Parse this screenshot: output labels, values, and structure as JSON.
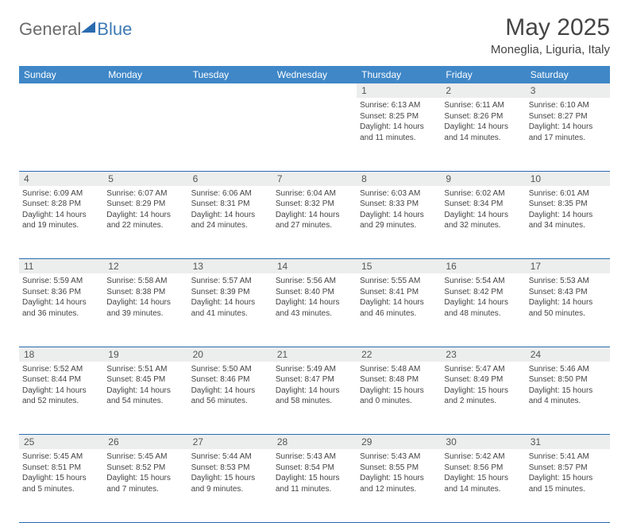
{
  "brand": {
    "part1": "General",
    "part2": "Blue"
  },
  "title": "May 2025",
  "location": "Moneglia, Liguria, Italy",
  "colors": {
    "headerBg": "#3f87c7",
    "headerText": "#ffffff",
    "dayBg": "#eceded",
    "border": "#2a6bb0",
    "bodyText": "#444444"
  },
  "dow": [
    "Sunday",
    "Monday",
    "Tuesday",
    "Wednesday",
    "Thursday",
    "Friday",
    "Saturday"
  ],
  "weeks": [
    [
      null,
      null,
      null,
      null,
      {
        "n": "1",
        "sr": "Sunrise: 6:13 AM",
        "ss": "Sunset: 8:25 PM",
        "d1": "Daylight: 14 hours",
        "d2": "and 11 minutes."
      },
      {
        "n": "2",
        "sr": "Sunrise: 6:11 AM",
        "ss": "Sunset: 8:26 PM",
        "d1": "Daylight: 14 hours",
        "d2": "and 14 minutes."
      },
      {
        "n": "3",
        "sr": "Sunrise: 6:10 AM",
        "ss": "Sunset: 8:27 PM",
        "d1": "Daylight: 14 hours",
        "d2": "and 17 minutes."
      }
    ],
    [
      {
        "n": "4",
        "sr": "Sunrise: 6:09 AM",
        "ss": "Sunset: 8:28 PM",
        "d1": "Daylight: 14 hours",
        "d2": "and 19 minutes."
      },
      {
        "n": "5",
        "sr": "Sunrise: 6:07 AM",
        "ss": "Sunset: 8:29 PM",
        "d1": "Daylight: 14 hours",
        "d2": "and 22 minutes."
      },
      {
        "n": "6",
        "sr": "Sunrise: 6:06 AM",
        "ss": "Sunset: 8:31 PM",
        "d1": "Daylight: 14 hours",
        "d2": "and 24 minutes."
      },
      {
        "n": "7",
        "sr": "Sunrise: 6:04 AM",
        "ss": "Sunset: 8:32 PM",
        "d1": "Daylight: 14 hours",
        "d2": "and 27 minutes."
      },
      {
        "n": "8",
        "sr": "Sunrise: 6:03 AM",
        "ss": "Sunset: 8:33 PM",
        "d1": "Daylight: 14 hours",
        "d2": "and 29 minutes."
      },
      {
        "n": "9",
        "sr": "Sunrise: 6:02 AM",
        "ss": "Sunset: 8:34 PM",
        "d1": "Daylight: 14 hours",
        "d2": "and 32 minutes."
      },
      {
        "n": "10",
        "sr": "Sunrise: 6:01 AM",
        "ss": "Sunset: 8:35 PM",
        "d1": "Daylight: 14 hours",
        "d2": "and 34 minutes."
      }
    ],
    [
      {
        "n": "11",
        "sr": "Sunrise: 5:59 AM",
        "ss": "Sunset: 8:36 PM",
        "d1": "Daylight: 14 hours",
        "d2": "and 36 minutes."
      },
      {
        "n": "12",
        "sr": "Sunrise: 5:58 AM",
        "ss": "Sunset: 8:38 PM",
        "d1": "Daylight: 14 hours",
        "d2": "and 39 minutes."
      },
      {
        "n": "13",
        "sr": "Sunrise: 5:57 AM",
        "ss": "Sunset: 8:39 PM",
        "d1": "Daylight: 14 hours",
        "d2": "and 41 minutes."
      },
      {
        "n": "14",
        "sr": "Sunrise: 5:56 AM",
        "ss": "Sunset: 8:40 PM",
        "d1": "Daylight: 14 hours",
        "d2": "and 43 minutes."
      },
      {
        "n": "15",
        "sr": "Sunrise: 5:55 AM",
        "ss": "Sunset: 8:41 PM",
        "d1": "Daylight: 14 hours",
        "d2": "and 46 minutes."
      },
      {
        "n": "16",
        "sr": "Sunrise: 5:54 AM",
        "ss": "Sunset: 8:42 PM",
        "d1": "Daylight: 14 hours",
        "d2": "and 48 minutes."
      },
      {
        "n": "17",
        "sr": "Sunrise: 5:53 AM",
        "ss": "Sunset: 8:43 PM",
        "d1": "Daylight: 14 hours",
        "d2": "and 50 minutes."
      }
    ],
    [
      {
        "n": "18",
        "sr": "Sunrise: 5:52 AM",
        "ss": "Sunset: 8:44 PM",
        "d1": "Daylight: 14 hours",
        "d2": "and 52 minutes."
      },
      {
        "n": "19",
        "sr": "Sunrise: 5:51 AM",
        "ss": "Sunset: 8:45 PM",
        "d1": "Daylight: 14 hours",
        "d2": "and 54 minutes."
      },
      {
        "n": "20",
        "sr": "Sunrise: 5:50 AM",
        "ss": "Sunset: 8:46 PM",
        "d1": "Daylight: 14 hours",
        "d2": "and 56 minutes."
      },
      {
        "n": "21",
        "sr": "Sunrise: 5:49 AM",
        "ss": "Sunset: 8:47 PM",
        "d1": "Daylight: 14 hours",
        "d2": "and 58 minutes."
      },
      {
        "n": "22",
        "sr": "Sunrise: 5:48 AM",
        "ss": "Sunset: 8:48 PM",
        "d1": "Daylight: 15 hours",
        "d2": "and 0 minutes."
      },
      {
        "n": "23",
        "sr": "Sunrise: 5:47 AM",
        "ss": "Sunset: 8:49 PM",
        "d1": "Daylight: 15 hours",
        "d2": "and 2 minutes."
      },
      {
        "n": "24",
        "sr": "Sunrise: 5:46 AM",
        "ss": "Sunset: 8:50 PM",
        "d1": "Daylight: 15 hours",
        "d2": "and 4 minutes."
      }
    ],
    [
      {
        "n": "25",
        "sr": "Sunrise: 5:45 AM",
        "ss": "Sunset: 8:51 PM",
        "d1": "Daylight: 15 hours",
        "d2": "and 5 minutes."
      },
      {
        "n": "26",
        "sr": "Sunrise: 5:45 AM",
        "ss": "Sunset: 8:52 PM",
        "d1": "Daylight: 15 hours",
        "d2": "and 7 minutes."
      },
      {
        "n": "27",
        "sr": "Sunrise: 5:44 AM",
        "ss": "Sunset: 8:53 PM",
        "d1": "Daylight: 15 hours",
        "d2": "and 9 minutes."
      },
      {
        "n": "28",
        "sr": "Sunrise: 5:43 AM",
        "ss": "Sunset: 8:54 PM",
        "d1": "Daylight: 15 hours",
        "d2": "and 11 minutes."
      },
      {
        "n": "29",
        "sr": "Sunrise: 5:43 AM",
        "ss": "Sunset: 8:55 PM",
        "d1": "Daylight: 15 hours",
        "d2": "and 12 minutes."
      },
      {
        "n": "30",
        "sr": "Sunrise: 5:42 AM",
        "ss": "Sunset: 8:56 PM",
        "d1": "Daylight: 15 hours",
        "d2": "and 14 minutes."
      },
      {
        "n": "31",
        "sr": "Sunrise: 5:41 AM",
        "ss": "Sunset: 8:57 PM",
        "d1": "Daylight: 15 hours",
        "d2": "and 15 minutes."
      }
    ]
  ]
}
